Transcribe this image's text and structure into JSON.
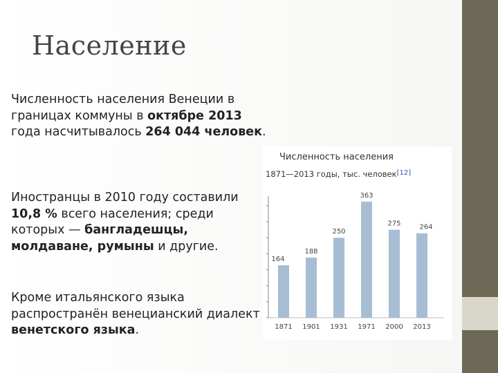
{
  "slide": {
    "title": "Население",
    "p1": {
      "t1": "Численность населения Венеции в границах коммуны в ",
      "b1": "октябре 2013",
      "t2": " года насчитывалось ",
      "b2": "264 044 человек",
      "t3": "."
    },
    "p2": {
      "t1": "Иностранцы в 2010 году составили ",
      "b1": "10,8 %",
      "t2": " всего населения; среди которых — ",
      "b2": "бангладешцы, молдаване, румыны",
      "t3": " и другие."
    },
    "p3": {
      "t1": "Кроме итальянского языка распространён венецианский диалект ",
      "b1": "венетского языка",
      "t2": "."
    }
  },
  "colors": {
    "bar": "#a7bdd3",
    "sidebar": "#6e6857",
    "accent": "#d8d7c9"
  },
  "chart_data": {
    "type": "bar",
    "title": "Численность населения",
    "subtitle": "1871—2013 годы, тыс. человек",
    "reference": "[12]",
    "categories": [
      "1871",
      "1901",
      "1931",
      "1971",
      "2000",
      "2013"
    ],
    "values": [
      164,
      188,
      250,
      363,
      275,
      264
    ],
    "ylim": [
      0,
      380
    ],
    "grid": false
  }
}
